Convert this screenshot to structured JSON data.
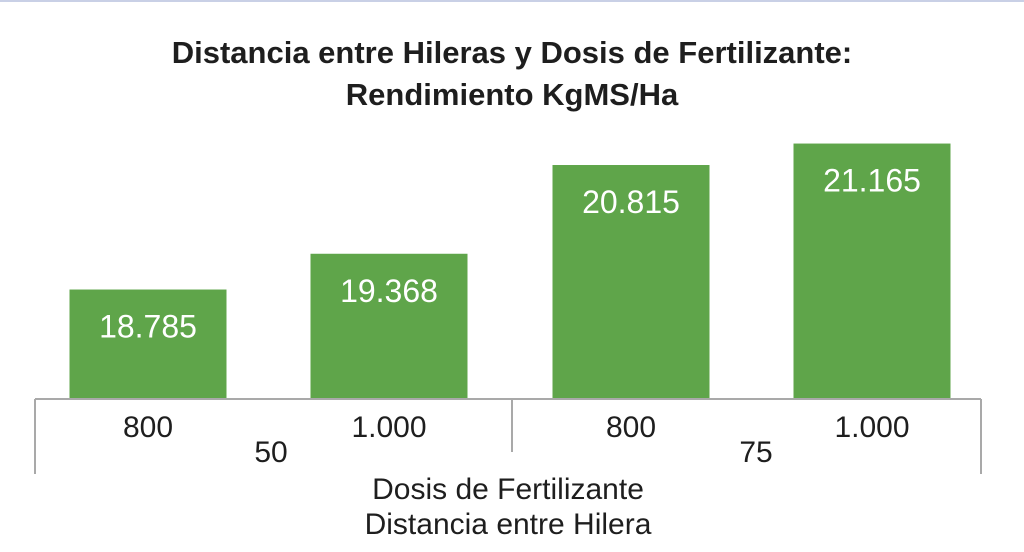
{
  "chart_data": {
    "type": "bar",
    "title_line1": "Distancia entre Hileras y Dosis de Fertilizante:",
    "title_line2": "Rendimiento KgMS/Ha",
    "categories": [
      "800",
      "1.000",
      "800",
      "1.000"
    ],
    "groups": [
      {
        "label": "50",
        "categories": [
          "800",
          "1.000"
        ]
      },
      {
        "label": "75",
        "categories": [
          "800",
          "1.000"
        ]
      }
    ],
    "values": [
      18785,
      19368,
      20815,
      21165
    ],
    "value_labels": [
      "18.785",
      "19.368",
      "20.815",
      "21.165"
    ],
    "xlabel_line1": "Dosis de Fertilizante",
    "xlabel_line2": "Distancia entre Hilera",
    "ylim": [
      17000,
      21500
    ],
    "colors": {
      "bar": "#5fa54a",
      "axis": "#a9a9a9",
      "text": "#1e1e1e"
    },
    "legend": "none",
    "grid": false
  }
}
